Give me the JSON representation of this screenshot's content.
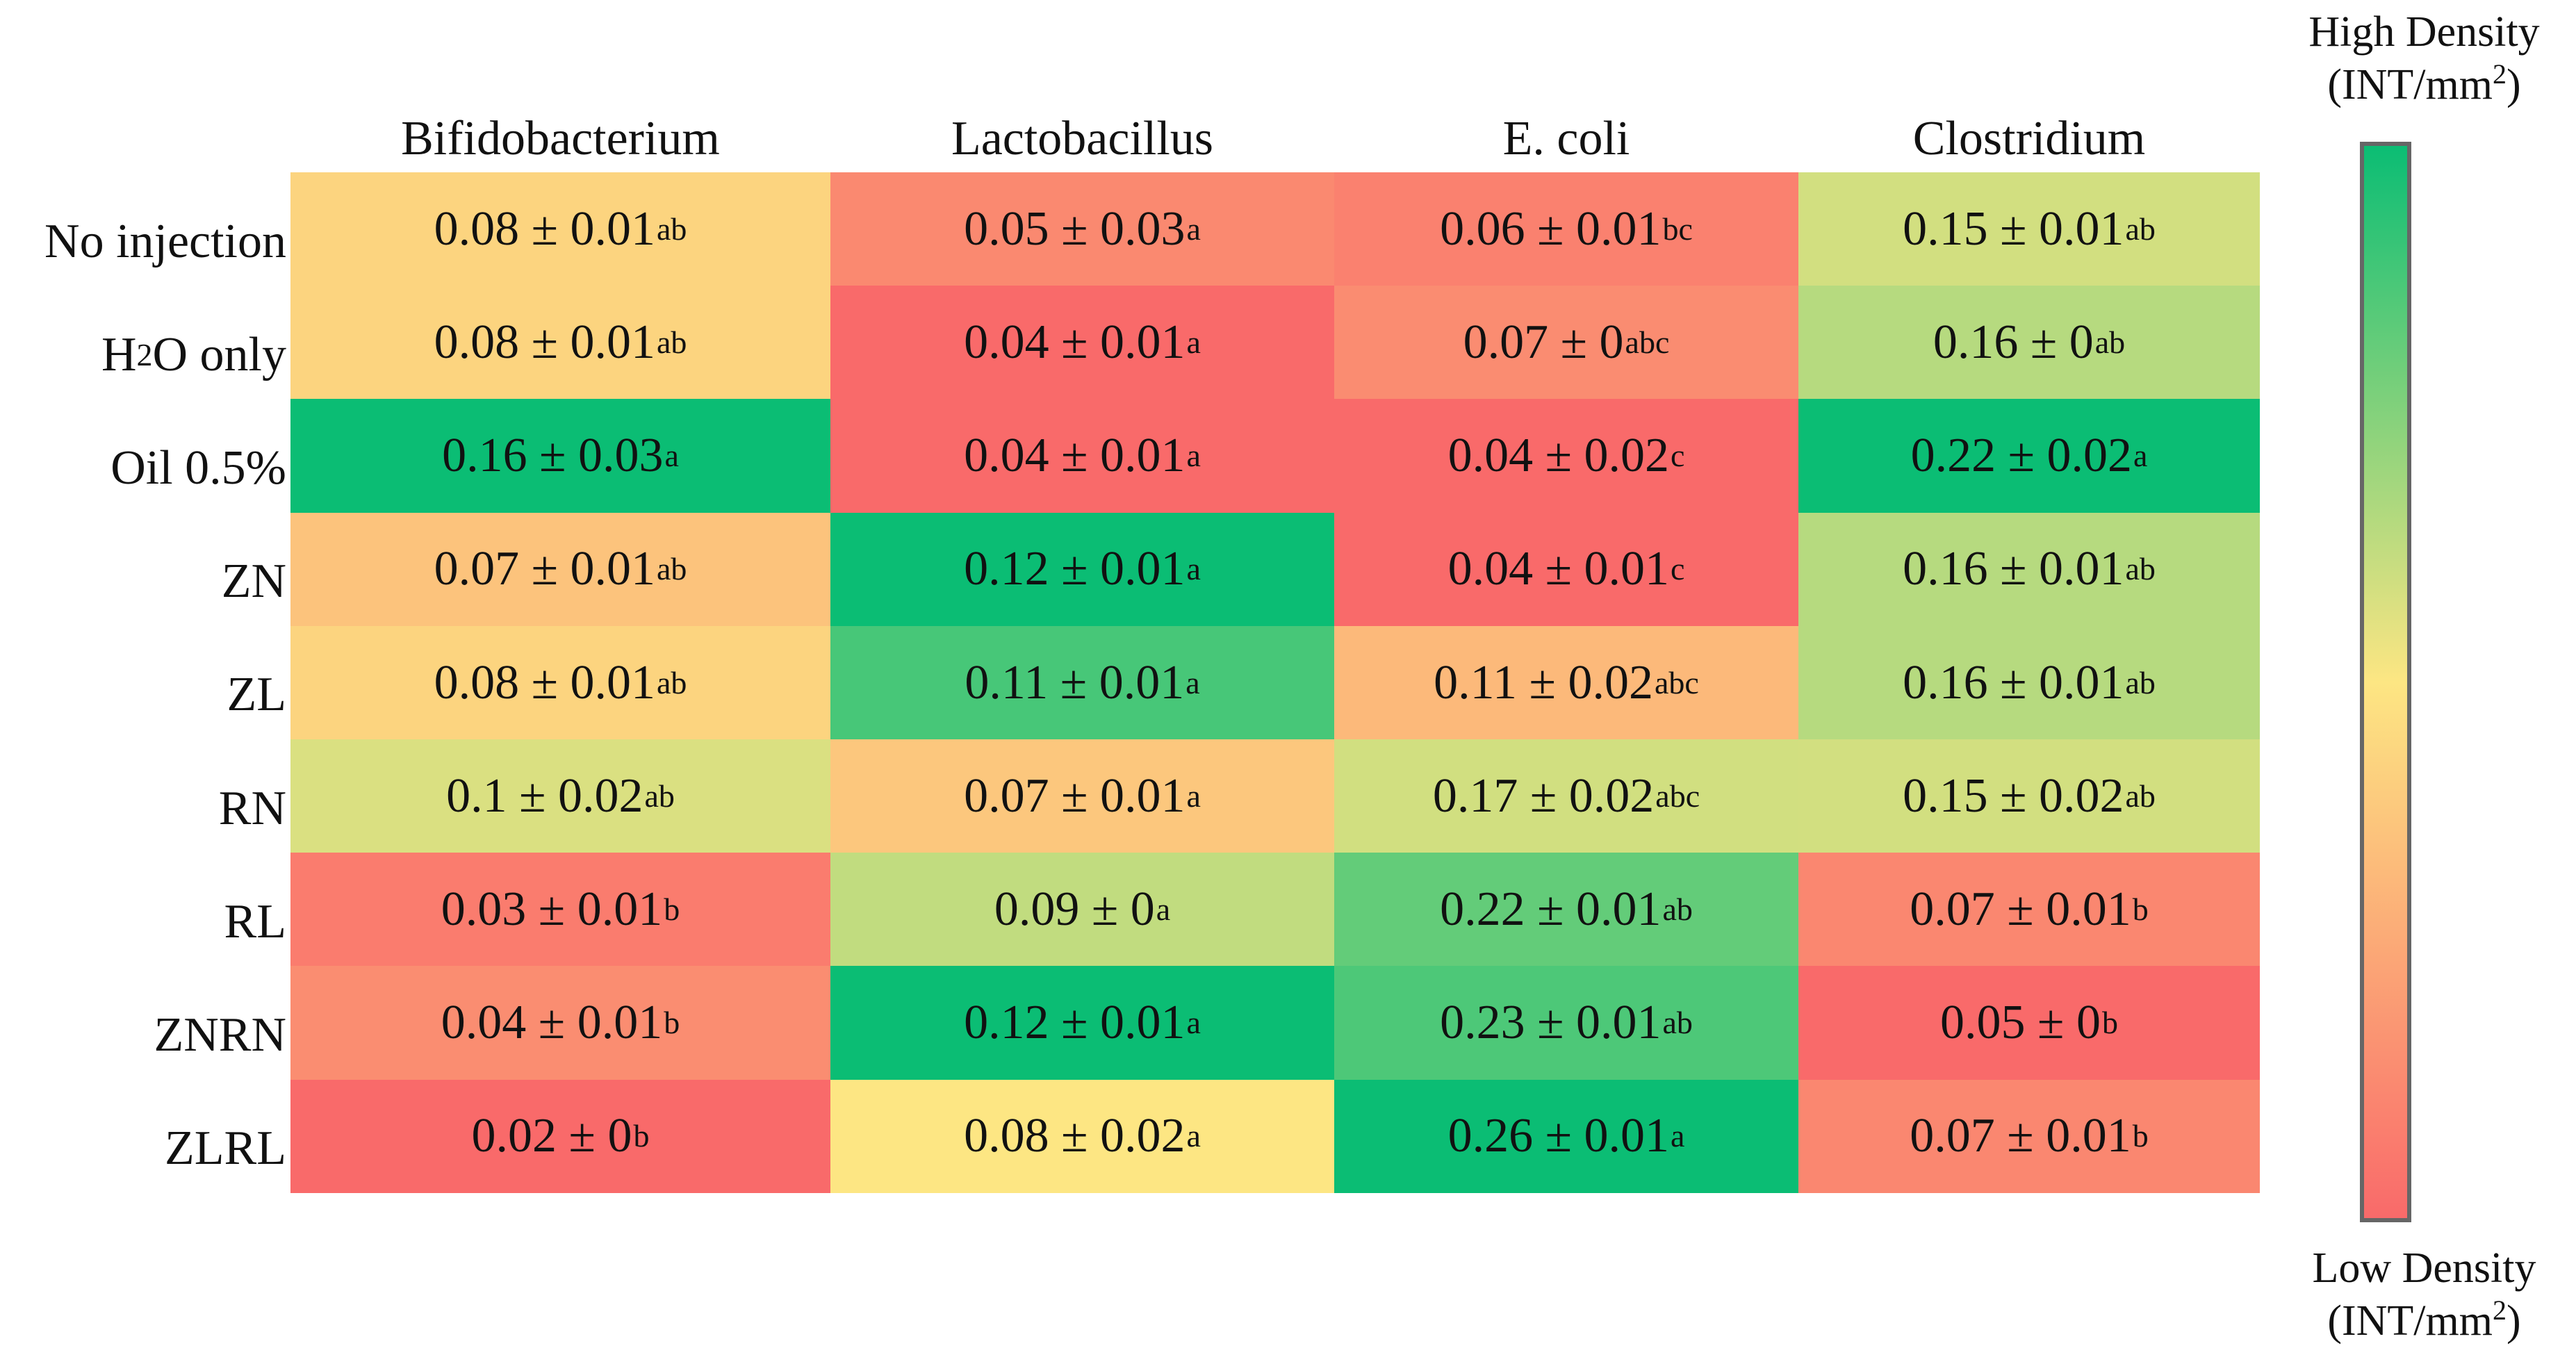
{
  "chart_data": {
    "type": "heatmap",
    "columns": [
      "Bifidobacterium",
      "Lactobacillus",
      "E. coli",
      "Clostridium"
    ],
    "rows": [
      {
        "label": "No injection",
        "cells": [
          {
            "mean": 0.08,
            "sd": 0.01,
            "sig": "ab"
          },
          {
            "mean": 0.05,
            "sd": 0.03,
            "sig": "a"
          },
          {
            "mean": 0.06,
            "sd": 0.01,
            "sig": "bc"
          },
          {
            "mean": 0.15,
            "sd": 0.01,
            "sig": "ab"
          }
        ]
      },
      {
        "label": "H",
        "label_sub": "2",
        "label_rest": "O only",
        "cells": [
          {
            "mean": 0.08,
            "sd": 0.01,
            "sig": "ab"
          },
          {
            "mean": 0.04,
            "sd": 0.01,
            "sig": "a"
          },
          {
            "mean": 0.07,
            "sd": 0,
            "sig": "abc"
          },
          {
            "mean": 0.16,
            "sd": 0,
            "sig": "ab"
          }
        ]
      },
      {
        "label": "Oil 0.5%",
        "cells": [
          {
            "mean": 0.16,
            "sd": 0.03,
            "sig": "a"
          },
          {
            "mean": 0.04,
            "sd": 0.01,
            "sig": "a"
          },
          {
            "mean": 0.04,
            "sd": 0.02,
            "sig": "c"
          },
          {
            "mean": 0.22,
            "sd": 0.02,
            "sig": "a"
          }
        ]
      },
      {
        "label": "ZN",
        "cells": [
          {
            "mean": 0.07,
            "sd": 0.01,
            "sig": "ab"
          },
          {
            "mean": 0.12,
            "sd": 0.01,
            "sig": "a"
          },
          {
            "mean": 0.04,
            "sd": 0.01,
            "sig": "c"
          },
          {
            "mean": 0.16,
            "sd": 0.01,
            "sig": "ab"
          }
        ]
      },
      {
        "label": "ZL",
        "cells": [
          {
            "mean": 0.08,
            "sd": 0.01,
            "sig": "ab"
          },
          {
            "mean": 0.11,
            "sd": 0.01,
            "sig": "a"
          },
          {
            "mean": 0.11,
            "sd": 0.02,
            "sig": "abc"
          },
          {
            "mean": 0.16,
            "sd": 0.01,
            "sig": "ab"
          }
        ]
      },
      {
        "label": "RN",
        "cells": [
          {
            "mean": 0.1,
            "sd": 0.02,
            "sig": "ab"
          },
          {
            "mean": 0.07,
            "sd": 0.01,
            "sig": "a"
          },
          {
            "mean": 0.17,
            "sd": 0.02,
            "sig": "abc"
          },
          {
            "mean": 0.15,
            "sd": 0.02,
            "sig": "ab"
          }
        ]
      },
      {
        "label": "RL",
        "cells": [
          {
            "mean": 0.03,
            "sd": 0.01,
            "sig": "b"
          },
          {
            "mean": 0.09,
            "sd": 0,
            "sig": "a"
          },
          {
            "mean": 0.22,
            "sd": 0.01,
            "sig": "ab"
          },
          {
            "mean": 0.07,
            "sd": 0.01,
            "sig": "b"
          }
        ]
      },
      {
        "label": "ZNRN",
        "cells": [
          {
            "mean": 0.04,
            "sd": 0.01,
            "sig": "b"
          },
          {
            "mean": 0.12,
            "sd": 0.01,
            "sig": "a"
          },
          {
            "mean": 0.23,
            "sd": 0.01,
            "sig": "ab"
          },
          {
            "mean": 0.05,
            "sd": 0,
            "sig": "b"
          }
        ]
      },
      {
        "label": "ZLRL",
        "cells": [
          {
            "mean": 0.02,
            "sd": 0,
            "sig": "b"
          },
          {
            "mean": 0.08,
            "sd": 0.02,
            "sig": "a"
          },
          {
            "mean": 0.26,
            "sd": 0.01,
            "sig": "a"
          },
          {
            "mean": 0.07,
            "sd": 0.01,
            "sig": "b"
          }
        ]
      }
    ],
    "color_scale": {
      "low": "#f96a6a",
      "mid": "#fde683",
      "high": "#0bbd74"
    },
    "legend": {
      "high_label": "High Density",
      "low_label": "Low Density",
      "unit": "(INT/mm",
      "unit_sup": "2",
      "unit_close": ")"
    }
  }
}
